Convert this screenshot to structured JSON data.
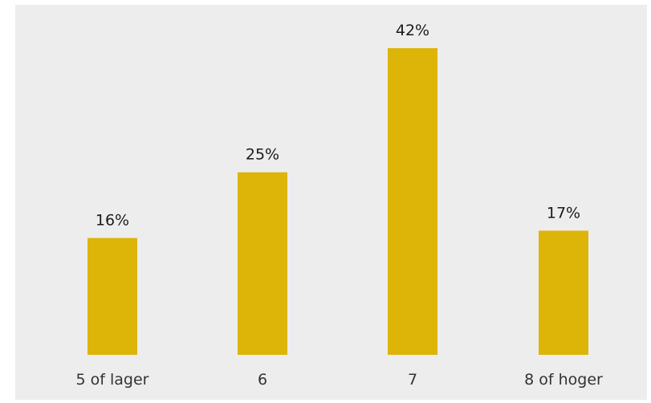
{
  "chart_data": {
    "type": "bar",
    "title": "",
    "xlabel": "",
    "ylabel": "",
    "categories": [
      "5 of lager",
      "6",
      "7",
      "8 of hoger"
    ],
    "values": [
      16,
      25,
      42,
      17
    ],
    "data_labels": [
      "16%",
      "25%",
      "42%",
      "17%"
    ],
    "ylim": [
      0,
      42
    ],
    "grid": false,
    "legend": "none",
    "colors": {
      "bar": "#DDB408",
      "plot_background": "#EDEDED",
      "page_background": "#FFFFFF",
      "text": "#333333"
    }
  }
}
